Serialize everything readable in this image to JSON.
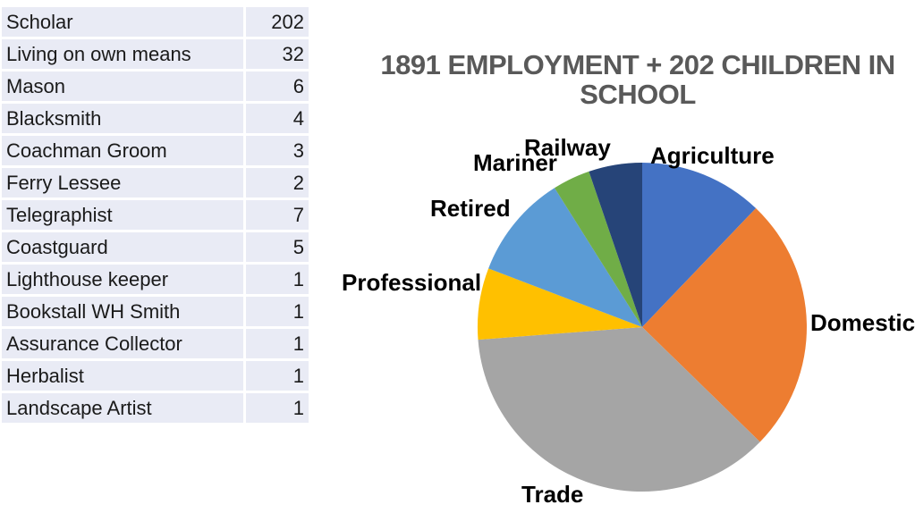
{
  "header": {
    "title_lines": [
      "1891 EMPLOYMENT + 202 CHILDREN IN",
      "SCHOOL"
    ],
    "title_color": "#595959"
  },
  "table": {
    "rows": [
      {
        "label": "Scholar",
        "value": "202"
      },
      {
        "label": "Living on own means",
        "value": "32"
      },
      {
        "label": "Mason",
        "value": "6"
      },
      {
        "label": "Blacksmith",
        "value": "4"
      },
      {
        "label": "Coachman Groom",
        "value": "3"
      },
      {
        "label": "Ferry Lessee",
        "value": "2"
      },
      {
        "label": "Telegraphist",
        "value": "7"
      },
      {
        "label": "Coastguard",
        "value": "5"
      },
      {
        "label": "Lighthouse keeper",
        "value": "1"
      },
      {
        "label": "Bookstall WH Smith",
        "value": "1"
      },
      {
        "label": "Assurance Collector",
        "value": "1"
      },
      {
        "label": "Herbalist",
        "value": "1"
      },
      {
        "label": "Landscape Artist",
        "value": "1"
      }
    ]
  },
  "chart_data": {
    "type": "pie",
    "title": "1891 EMPLOYMENT + 202 CHILDREN IN SCHOOL",
    "legend": "none (labels placed beside slices)",
    "start_angle_deg": 0,
    "direction": "clockwise",
    "values_labeled_on_chart": false,
    "slices": [
      {
        "label": "Agriculture",
        "percent_est": 12.1,
        "angle_deg": 43.7,
        "color": "#4472C4"
      },
      {
        "label": "Domestic",
        "percent_est": 25.2,
        "angle_deg": 90.6,
        "color": "#ED7D31"
      },
      {
        "label": "Trade",
        "percent_est": 36.5,
        "angle_deg": 131.3,
        "color": "#A5A5A5"
      },
      {
        "label": "Professional",
        "percent_est": 7.0,
        "angle_deg": 25.3,
        "color": "#FFC000"
      },
      {
        "label": "Retired",
        "percent_est": 10.2,
        "angle_deg": 36.9,
        "color": "#5B9BD5"
      },
      {
        "label": "Mariner",
        "percent_est": 3.7,
        "angle_deg": 13.3,
        "color": "#70AD47"
      },
      {
        "label": "Railway",
        "percent_est": 5.3,
        "angle_deg": 18.9,
        "color": "#264478"
      }
    ]
  }
}
